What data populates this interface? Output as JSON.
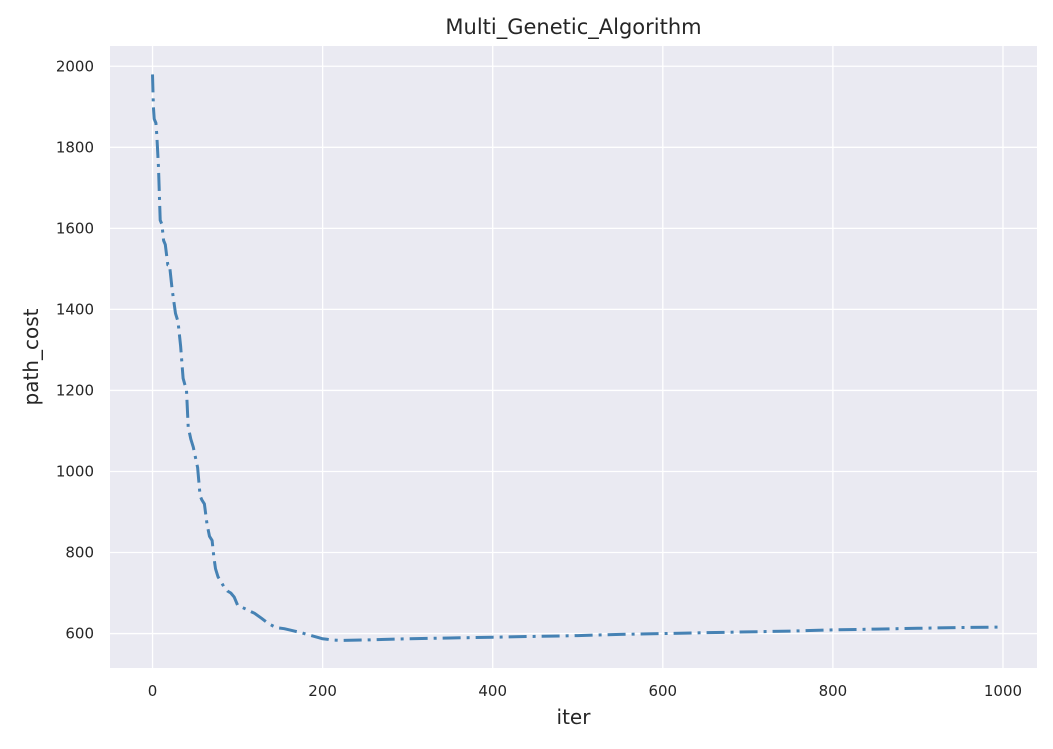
{
  "chart_data": {
    "type": "line",
    "title": "Multi_Genetic_Algorithm",
    "xlabel": "iter",
    "ylabel": "path_cost",
    "xlim": [
      -50,
      1040
    ],
    "ylim": [
      515,
      2050
    ],
    "xticks": [
      0,
      200,
      400,
      600,
      800,
      1000
    ],
    "yticks": [
      600,
      800,
      1000,
      1200,
      1400,
      1600,
      1800,
      2000
    ],
    "grid": true,
    "legend": "none",
    "colors": {
      "background": "#eaeaf2",
      "grid": "#ffffff",
      "line": "#4682b4"
    },
    "series": [
      {
        "line_style": "dashdot",
        "x": [
          0,
          1,
          2,
          4,
          5,
          7,
          9,
          11,
          13,
          15,
          18,
          20,
          23,
          27,
          30,
          33,
          36,
          38,
          40,
          42,
          45,
          48,
          50,
          53,
          56,
          58,
          61,
          64,
          67,
          70,
          72,
          74,
          77,
          80,
          84,
          88,
          92,
          96,
          100,
          105,
          110,
          115,
          120,
          128,
          136,
          145,
          155,
          165,
          175,
          185,
          195,
          200,
          205,
          210,
          220,
          250,
          300,
          350,
          400,
          450,
          500,
          550,
          600,
          650,
          700,
          750,
          800,
          850,
          900,
          950,
          1000
        ],
        "y": [
          1980,
          1900,
          1870,
          1860,
          1830,
          1750,
          1620,
          1610,
          1570,
          1560,
          1510,
          1510,
          1450,
          1390,
          1370,
          1310,
          1230,
          1215,
          1200,
          1110,
          1080,
          1060,
          1040,
          1010,
          940,
          930,
          920,
          870,
          840,
          830,
          790,
          760,
          740,
          730,
          715,
          705,
          700,
          690,
          670,
          665,
          660,
          655,
          650,
          638,
          625,
          615,
          612,
          607,
          602,
          596,
          590,
          587,
          586,
          584,
          583,
          584,
          587,
          589,
          591,
          593,
          595,
          598,
          600,
          602,
          604,
          606,
          609,
          611,
          613,
          615,
          616
        ]
      }
    ]
  }
}
